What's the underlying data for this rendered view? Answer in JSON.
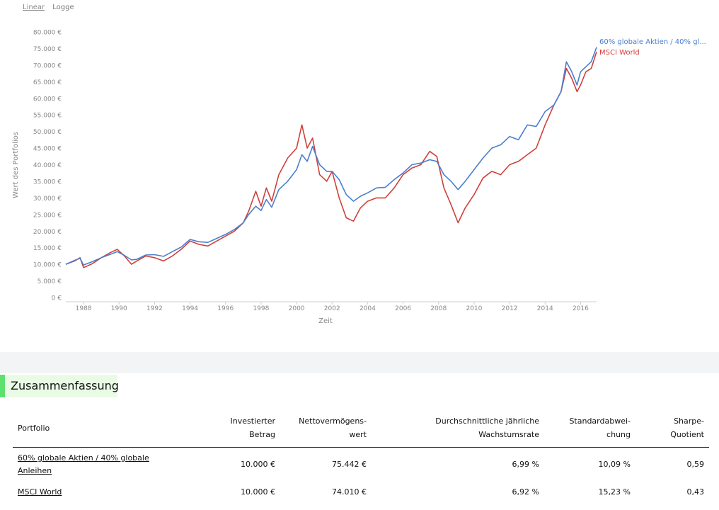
{
  "scale_toggle": {
    "linear": "Linear",
    "log": "Logge"
  },
  "chart_data": {
    "type": "line",
    "title": "",
    "xlabel": "Zeit",
    "ylabel": "Wert des Portfolios",
    "xlim": [
      1987.0,
      2016.9
    ],
    "ylim": [
      0,
      80000
    ],
    "y_ticks": [
      "0 €",
      "5.000 €",
      "10.000 €",
      "15.000 €",
      "20.000 €",
      "25.000 €",
      "30.000 €",
      "35.000 €",
      "40.000 €",
      "45.000 €",
      "50.000 €",
      "55.000 €",
      "60.000 €",
      "65.000 €",
      "70.000 €",
      "75.000 €",
      "80.000 €"
    ],
    "x_ticks": [
      "1988",
      "1990",
      "1992",
      "1994",
      "1996",
      "1998",
      "2000",
      "2002",
      "2004",
      "2006",
      "2008",
      "2010",
      "2012",
      "2014",
      "2016"
    ],
    "grid": false,
    "legend": "right, at line end",
    "series": [
      {
        "name": "60% globale Aktien / 40% gl...",
        "color": "#4a7fcf",
        "x": [
          1987.0,
          1987.5,
          1987.8,
          1988.0,
          1988.5,
          1989.0,
          1989.5,
          1989.9,
          1990.3,
          1990.7,
          1991.0,
          1991.5,
          1992.0,
          1992.5,
          1993.0,
          1993.5,
          1994.0,
          1994.5,
          1995.0,
          1995.5,
          1996.0,
          1996.5,
          1997.0,
          1997.3,
          1997.7,
          1998.0,
          1998.3,
          1998.6,
          1999.0,
          1999.5,
          2000.0,
          2000.3,
          2000.6,
          2000.9,
          2001.3,
          2001.7,
          2002.0,
          2002.4,
          2002.8,
          2003.2,
          2003.6,
          2004.0,
          2004.5,
          2005.0,
          2005.5,
          2006.0,
          2006.5,
          2007.0,
          2007.5,
          2007.9,
          2008.3,
          2008.7,
          2009.1,
          2009.5,
          2010.0,
          2010.5,
          2011.0,
          2011.5,
          2012.0,
          2012.5,
          2013.0,
          2013.5,
          2014.0,
          2014.5,
          2014.9,
          2015.2,
          2015.5,
          2015.8,
          2016.0,
          2016.3,
          2016.6,
          2016.9
        ],
        "values": [
          10000,
          11200,
          11800,
          9800,
          10800,
          12000,
          13000,
          13800,
          12700,
          11300,
          11500,
          12800,
          12900,
          12400,
          13800,
          15200,
          17500,
          16800,
          16600,
          17800,
          19000,
          20500,
          22500,
          25000,
          27500,
          26200,
          29500,
          27200,
          32500,
          35000,
          38500,
          43000,
          41000,
          45500,
          40000,
          38000,
          38000,
          35500,
          31000,
          29000,
          30500,
          31500,
          33000,
          33200,
          35500,
          37500,
          40000,
          40500,
          41500,
          41000,
          37000,
          35000,
          32500,
          35000,
          38500,
          42000,
          45000,
          46000,
          48500,
          47500,
          52000,
          51500,
          56000,
          58000,
          62000,
          71000,
          68000,
          64000,
          68000,
          69500,
          71000,
          75400
        ]
      },
      {
        "name": "MSCI World",
        "color": "#d0403a",
        "x": [
          1987.0,
          1987.5,
          1987.8,
          1988.0,
          1988.5,
          1989.0,
          1989.5,
          1989.9,
          1990.3,
          1990.7,
          1991.0,
          1991.5,
          1992.0,
          1992.5,
          1993.0,
          1993.5,
          1994.0,
          1994.5,
          1995.0,
          1995.5,
          1996.0,
          1996.5,
          1997.0,
          1997.3,
          1997.7,
          1998.0,
          1998.3,
          1998.6,
          1999.0,
          1999.5,
          2000.0,
          2000.3,
          2000.6,
          2000.9,
          2001.3,
          2001.7,
          2002.0,
          2002.4,
          2002.8,
          2003.2,
          2003.6,
          2004.0,
          2004.5,
          2005.0,
          2005.5,
          2006.0,
          2006.5,
          2007.0,
          2007.5,
          2007.9,
          2008.3,
          2008.7,
          2009.1,
          2009.5,
          2010.0,
          2010.5,
          2011.0,
          2011.5,
          2012.0,
          2012.5,
          2013.0,
          2013.5,
          2014.0,
          2014.5,
          2014.9,
          2015.2,
          2015.5,
          2015.8,
          2016.0,
          2016.3,
          2016.6,
          2016.9
        ],
        "values": [
          10000,
          11000,
          12000,
          9000,
          10200,
          12000,
          13500,
          14500,
          12500,
          10000,
          11000,
          12500,
          12000,
          11000,
          12500,
          14500,
          17000,
          16000,
          15500,
          17000,
          18500,
          20000,
          22500,
          26000,
          32000,
          27500,
          33000,
          29000,
          37000,
          42000,
          45000,
          52000,
          45000,
          48000,
          37000,
          35000,
          38000,
          30000,
          24000,
          23000,
          27000,
          29000,
          30000,
          30000,
          33000,
          37000,
          39000,
          40000,
          44000,
          42500,
          33000,
          28000,
          22500,
          27000,
          31000,
          36000,
          38000,
          37000,
          40000,
          41000,
          43000,
          45000,
          52000,
          58000,
          62000,
          69000,
          66000,
          62000,
          64000,
          68000,
          69000,
          74000
        ]
      }
    ]
  },
  "summary": {
    "title": "Zusammenfassung",
    "headers": {
      "portfolio": "Portfolio",
      "invested": [
        "Investierter",
        "Betrag"
      ],
      "nav": [
        "Nettovermögens-",
        "wert"
      ],
      "cagr": [
        "Durchschnittliche jährliche",
        "Wachstumsrate"
      ],
      "stddev": [
        "Standardabwei-",
        "chung"
      ],
      "sharpe": [
        "Sharpe-",
        "Quotient"
      ]
    },
    "rows": [
      {
        "portfolio": [
          "60% globale Aktien / 40% globale",
          "Anleihen"
        ],
        "invested": "10.000 €",
        "nav": "75.442 €",
        "cagr": "6,99 %",
        "stddev": "10,09 %",
        "sharpe": "0,59"
      },
      {
        "portfolio": [
          "MSCI World"
        ],
        "invested": "10.000 €",
        "nav": "74.010 €",
        "cagr": "6,92 %",
        "stddev": "15,23 %",
        "sharpe": "0,43"
      }
    ]
  }
}
